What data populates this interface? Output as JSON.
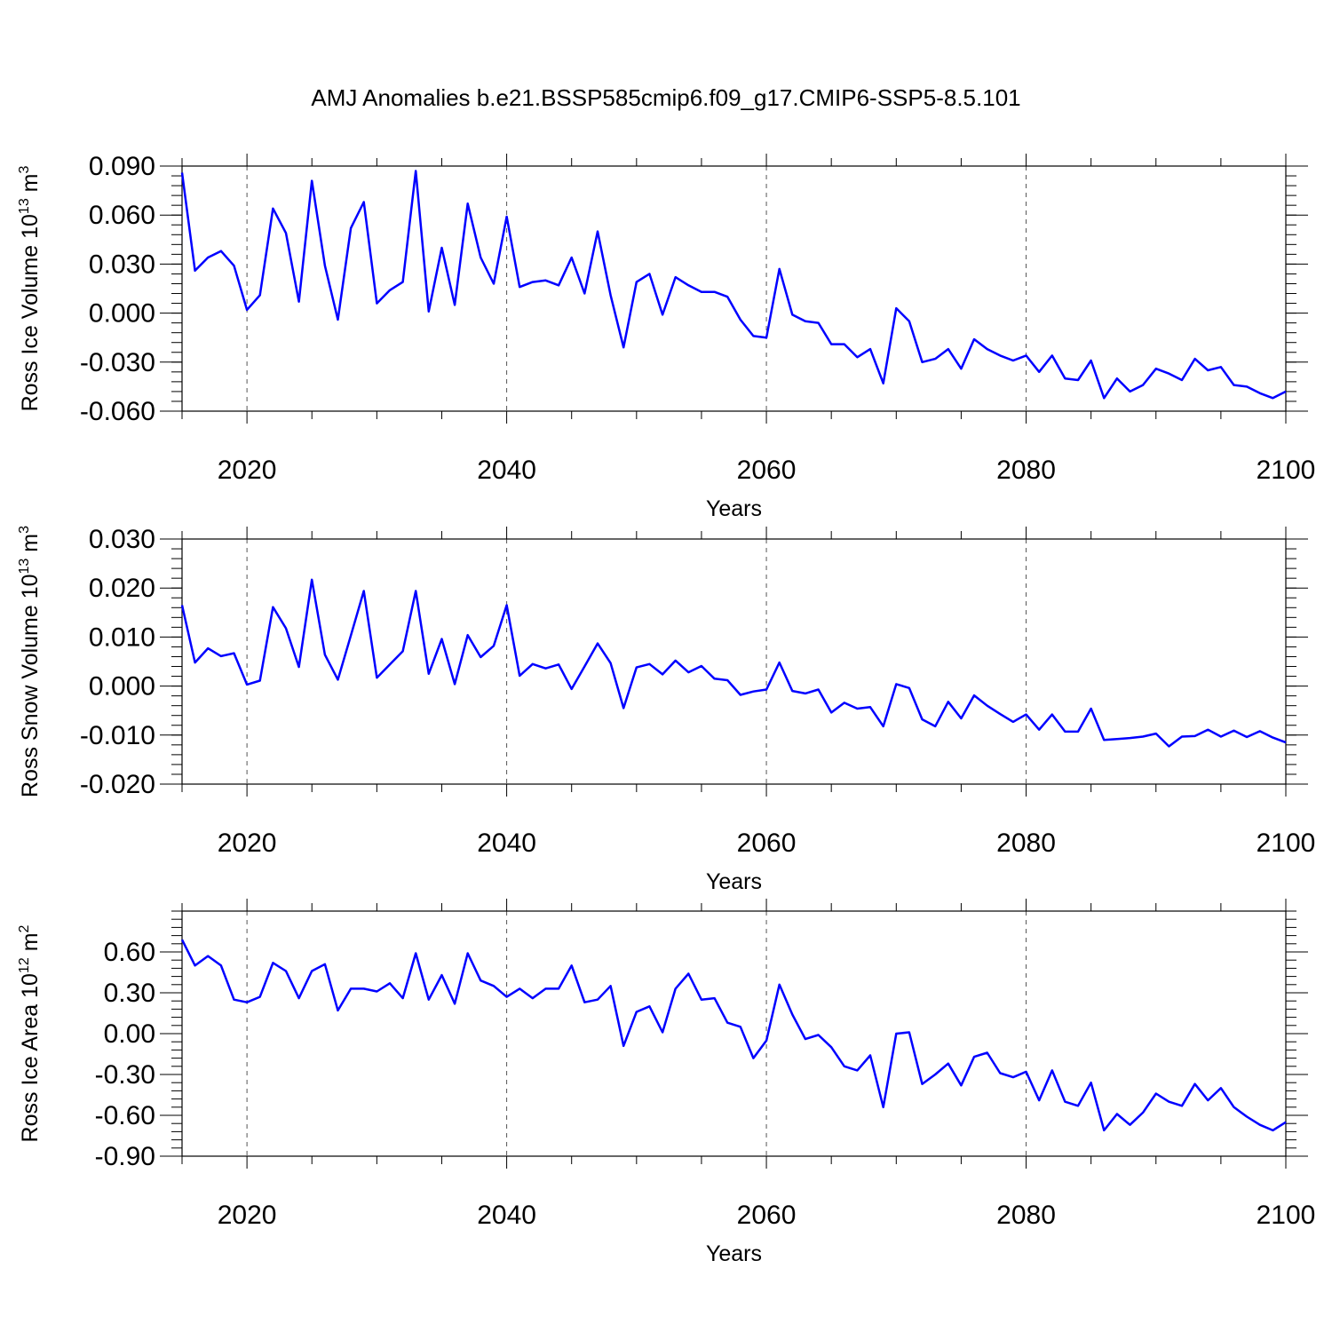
{
  "title": "AMJ Anomalies b.e21.BSSP585cmip6.f09_g17.CMIP6-SSP5-8.5.101",
  "colors": {
    "line": "#0000ff",
    "axis": "#000000",
    "grid": "#555555"
  },
  "chart_data": [
    {
      "type": "line",
      "ylabel_main": "Ross Ice Volume 10",
      "ylabel_exp": "13",
      "ylabel_tail": " m",
      "ylabel_unit_exp": "3",
      "xlabel": "Years",
      "xlim": [
        2015,
        2100
      ],
      "ylim": [
        -0.06,
        0.09
      ],
      "xticks": [
        2020,
        2040,
        2060,
        2080,
        2100
      ],
      "yticks": [
        -0.06,
        -0.03,
        0.0,
        0.03,
        0.06,
        0.09
      ],
      "ytick_labels": [
        "-0.060",
        "-0.030",
        "0.000",
        "0.030",
        "0.060",
        "0.090"
      ],
      "grid": "vertical dashed at major x ticks",
      "x": [
        2015,
        2016,
        2017,
        2018,
        2019,
        2020,
        2021,
        2022,
        2023,
        2024,
        2025,
        2026,
        2027,
        2028,
        2029,
        2030,
        2031,
        2032,
        2033,
        2034,
        2035,
        2036,
        2037,
        2038,
        2039,
        2040,
        2041,
        2042,
        2043,
        2044,
        2045,
        2046,
        2047,
        2048,
        2049,
        2050,
        2051,
        2052,
        2053,
        2054,
        2055,
        2056,
        2057,
        2058,
        2059,
        2060,
        2061,
        2062,
        2063,
        2064,
        2065,
        2066,
        2067,
        2068,
        2069,
        2070,
        2071,
        2072,
        2073,
        2074,
        2075,
        2076,
        2077,
        2078,
        2079,
        2080,
        2081,
        2082,
        2083,
        2084,
        2085,
        2086,
        2087,
        2088,
        2089,
        2090,
        2091,
        2092,
        2093,
        2094,
        2095,
        2096,
        2097,
        2098,
        2099,
        2100
      ],
      "series": [
        {
          "values": [
            0.086,
            0.026,
            0.034,
            0.038,
            0.029,
            0.002,
            0.011,
            0.064,
            0.049,
            0.007,
            0.081,
            0.029,
            -0.004,
            0.052,
            0.068,
            0.006,
            0.014,
            0.019,
            0.087,
            0.001,
            0.04,
            0.005,
            0.067,
            0.034,
            0.018,
            0.059,
            0.016,
            0.019,
            0.02,
            0.017,
            0.034,
            0.012,
            0.05,
            0.011,
            -0.021,
            0.019,
            0.024,
            -0.001,
            0.022,
            0.017,
            0.013,
            0.013,
            0.01,
            -0.004,
            -0.014,
            -0.015,
            0.027,
            -0.001,
            -0.005,
            -0.006,
            -0.019,
            -0.019,
            -0.027,
            -0.022,
            -0.043,
            0.003,
            -0.005,
            -0.03,
            -0.028,
            -0.022,
            -0.034,
            -0.016,
            -0.022,
            -0.026,
            -0.029,
            -0.026,
            -0.036,
            -0.026,
            -0.04,
            -0.041,
            -0.029,
            -0.052,
            -0.04,
            -0.048,
            -0.044,
            -0.034,
            -0.037,
            -0.041,
            -0.028,
            -0.035,
            -0.033,
            -0.044,
            -0.045,
            -0.049,
            -0.052,
            -0.048
          ]
        }
      ]
    },
    {
      "type": "line",
      "ylabel_main": "Ross Snow Volume 10",
      "ylabel_exp": "13",
      "ylabel_tail": " m",
      "ylabel_unit_exp": "3",
      "xlabel": "Years",
      "xlim": [
        2015,
        2100
      ],
      "ylim": [
        -0.02,
        0.03
      ],
      "xticks": [
        2020,
        2040,
        2060,
        2080,
        2100
      ],
      "yticks": [
        -0.02,
        -0.01,
        0.0,
        0.01,
        0.02,
        0.03
      ],
      "ytick_labels": [
        "-0.020",
        "-0.010",
        "0.000",
        "0.010",
        "0.020",
        "0.030"
      ],
      "grid": "vertical dashed at major x ticks",
      "x": [
        2015,
        2016,
        2017,
        2018,
        2019,
        2020,
        2021,
        2022,
        2023,
        2024,
        2025,
        2026,
        2027,
        2028,
        2029,
        2030,
        2031,
        2032,
        2033,
        2034,
        2035,
        2036,
        2037,
        2038,
        2039,
        2040,
        2041,
        2042,
        2043,
        2044,
        2045,
        2046,
        2047,
        2048,
        2049,
        2050,
        2051,
        2052,
        2053,
        2054,
        2055,
        2056,
        2057,
        2058,
        2059,
        2060,
        2061,
        2062,
        2063,
        2064,
        2065,
        2066,
        2067,
        2068,
        2069,
        2070,
        2071,
        2072,
        2073,
        2074,
        2075,
        2076,
        2077,
        2078,
        2079,
        2080,
        2081,
        2082,
        2083,
        2084,
        2085,
        2086,
        2087,
        2088,
        2089,
        2090,
        2091,
        2092,
        2093,
        2094,
        2095,
        2096,
        2097,
        2098,
        2099,
        2100
      ],
      "series": [
        {
          "values": [
            0.0165,
            0.0048,
            0.0077,
            0.0061,
            0.0067,
            0.0003,
            0.0011,
            0.0161,
            0.0118,
            0.0039,
            0.0217,
            0.0064,
            0.0013,
            0.0103,
            0.0194,
            0.0017,
            0.0044,
            0.0071,
            0.0194,
            0.0025,
            0.0096,
            0.0004,
            0.0104,
            0.0059,
            0.0082,
            0.0165,
            0.0021,
            0.0045,
            0.0036,
            0.0044,
            -0.0006,
            0.004,
            0.0087,
            0.0047,
            -0.0045,
            0.0038,
            0.0045,
            0.0024,
            0.0052,
            0.0028,
            0.0041,
            0.0015,
            0.0012,
            -0.0018,
            -0.0011,
            -0.0007,
            0.0048,
            -0.001,
            -0.0015,
            -0.0007,
            -0.0054,
            -0.0034,
            -0.0046,
            -0.0043,
            -0.0082,
            0.0004,
            -0.0004,
            -0.0068,
            -0.0082,
            -0.0032,
            -0.0066,
            -0.0019,
            -0.004,
            -0.0057,
            -0.0073,
            -0.0058,
            -0.0089,
            -0.0058,
            -0.0093,
            -0.0093,
            -0.0046,
            -0.011,
            -0.0108,
            -0.0106,
            -0.0103,
            -0.0097,
            -0.0123,
            -0.0103,
            -0.0102,
            -0.0089,
            -0.0103,
            -0.0091,
            -0.0104,
            -0.0092,
            -0.0105,
            -0.0115
          ]
        }
      ]
    },
    {
      "type": "line",
      "ylabel_main": "Ross Ice Area 10",
      "ylabel_exp": "12",
      "ylabel_tail": " m",
      "ylabel_unit_exp": "2",
      "xlabel": "Years",
      "xlim": [
        2015,
        2100
      ],
      "ylim": [
        -0.9,
        0.9
      ],
      "xticks": [
        2020,
        2040,
        2060,
        2080,
        2100
      ],
      "yticks": [
        -0.9,
        -0.6,
        -0.3,
        0.0,
        0.3,
        0.6
      ],
      "ytick_labels": [
        "-0.90",
        "-0.60",
        "-0.30",
        "0.00",
        "0.30",
        "0.60"
      ],
      "grid": "vertical dashed at major x ticks",
      "x": [
        2015,
        2016,
        2017,
        2018,
        2019,
        2020,
        2021,
        2022,
        2023,
        2024,
        2025,
        2026,
        2027,
        2028,
        2029,
        2030,
        2031,
        2032,
        2033,
        2034,
        2035,
        2036,
        2037,
        2038,
        2039,
        2040,
        2041,
        2042,
        2043,
        2044,
        2045,
        2046,
        2047,
        2048,
        2049,
        2050,
        2051,
        2052,
        2053,
        2054,
        2055,
        2056,
        2057,
        2058,
        2059,
        2060,
        2061,
        2062,
        2063,
        2064,
        2065,
        2066,
        2067,
        2068,
        2069,
        2070,
        2071,
        2072,
        2073,
        2074,
        2075,
        2076,
        2077,
        2078,
        2079,
        2080,
        2081,
        2082,
        2083,
        2084,
        2085,
        2086,
        2087,
        2088,
        2089,
        2090,
        2091,
        2092,
        2093,
        2094,
        2095,
        2096,
        2097,
        2098,
        2099,
        2100
      ],
      "series": [
        {
          "values": [
            0.69,
            0.5,
            0.57,
            0.5,
            0.25,
            0.23,
            0.27,
            0.52,
            0.46,
            0.26,
            0.46,
            0.51,
            0.17,
            0.33,
            0.33,
            0.31,
            0.37,
            0.26,
            0.59,
            0.25,
            0.43,
            0.22,
            0.59,
            0.39,
            0.35,
            0.27,
            0.33,
            0.26,
            0.33,
            0.33,
            0.5,
            0.23,
            0.25,
            0.35,
            -0.09,
            0.16,
            0.2,
            0.01,
            0.33,
            0.44,
            0.25,
            0.26,
            0.08,
            0.05,
            -0.18,
            -0.05,
            0.36,
            0.14,
            -0.04,
            -0.01,
            -0.1,
            -0.24,
            -0.27,
            -0.16,
            -0.54,
            0.0,
            0.01,
            -0.37,
            -0.3,
            -0.22,
            -0.38,
            -0.17,
            -0.14,
            -0.29,
            -0.32,
            -0.28,
            -0.49,
            -0.27,
            -0.5,
            -0.53,
            -0.36,
            -0.71,
            -0.59,
            -0.67,
            -0.58,
            -0.44,
            -0.5,
            -0.53,
            -0.37,
            -0.49,
            -0.4,
            -0.54,
            -0.61,
            -0.67,
            -0.71,
            -0.65
          ]
        }
      ]
    }
  ]
}
